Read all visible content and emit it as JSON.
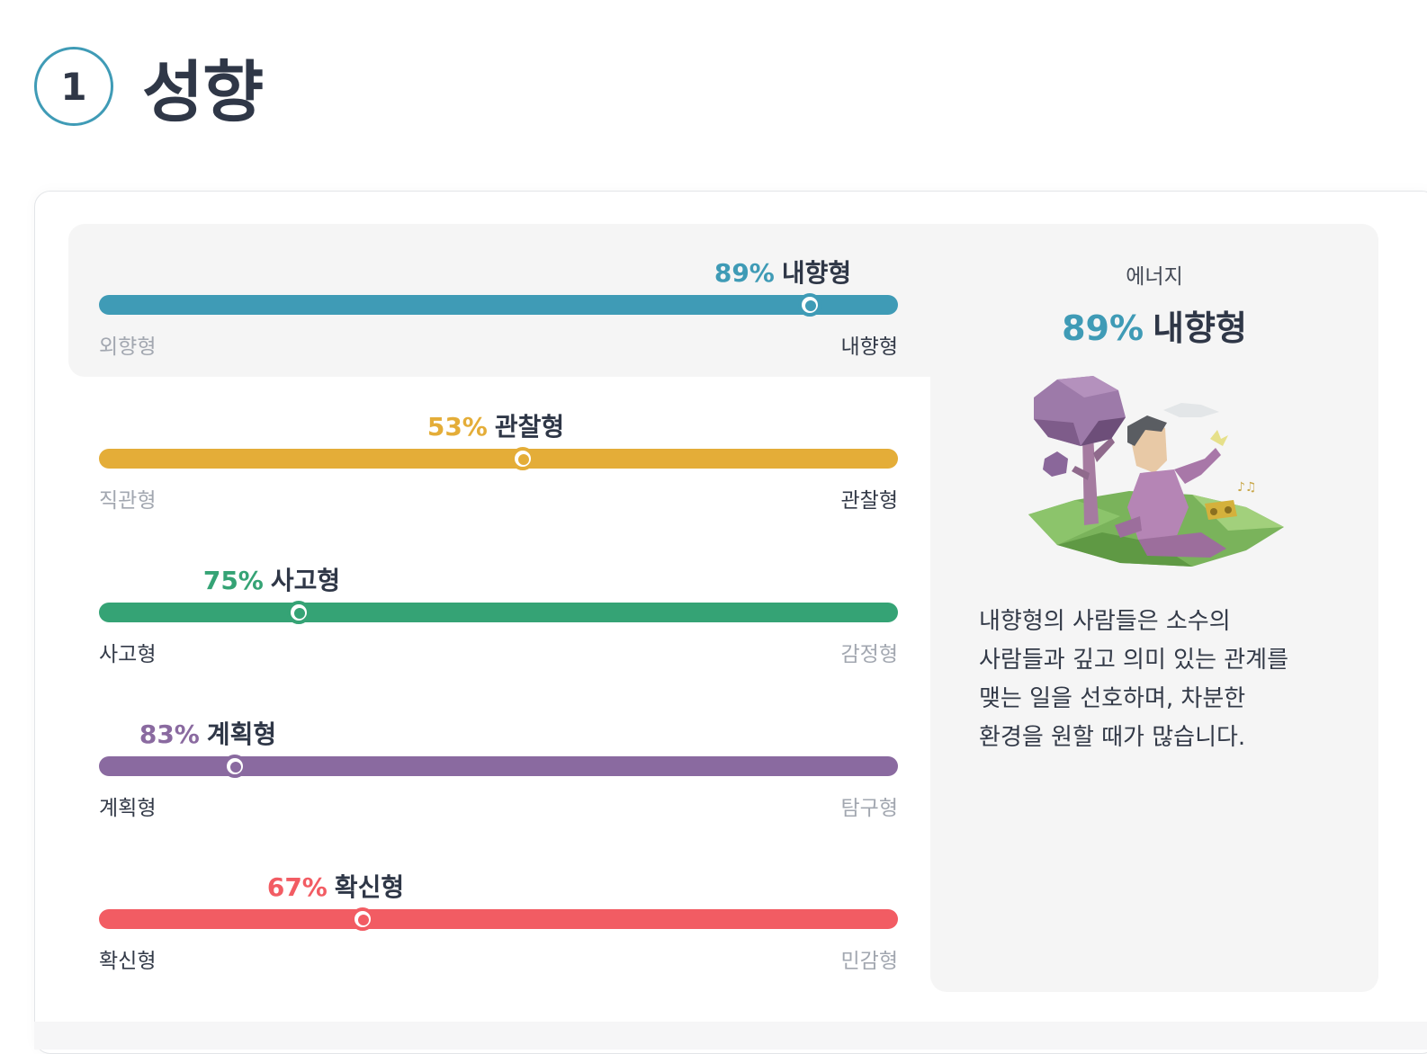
{
  "header": {
    "number": "1",
    "title": "성향"
  },
  "colors": {
    "teal": "#3f9bb6",
    "yellow": "#e4ad38",
    "green": "#35a375",
    "purple": "#8a6aa0",
    "red": "#f25c63"
  },
  "scales": [
    {
      "pct": "89%",
      "type": "내향형",
      "left_label": "외향형",
      "right_label": "내향형",
      "knob_fraction": 0.89,
      "color": "#3f9bb6",
      "active_side": "right"
    },
    {
      "pct": "53%",
      "type": "관찰형",
      "left_label": "직관형",
      "right_label": "관찰형",
      "knob_fraction": 0.53,
      "color": "#e4ad38",
      "active_side": "right"
    },
    {
      "pct": "75%",
      "type": "사고형",
      "left_label": "사고형",
      "right_label": "감정형",
      "knob_fraction": 0.25,
      "color": "#35a375",
      "active_side": "left"
    },
    {
      "pct": "83%",
      "type": "계획형",
      "left_label": "계획형",
      "right_label": "탐구형",
      "knob_fraction": 0.17,
      "color": "#8a6aa0",
      "active_side": "left"
    },
    {
      "pct": "67%",
      "type": "확신형",
      "left_label": "확신형",
      "right_label": "민감형",
      "knob_fraction": 0.33,
      "color": "#f25c63",
      "active_side": "left"
    }
  ],
  "detail": {
    "category": "에너지",
    "pct": "89%",
    "type": "내향형",
    "illustration_icon": "man-relaxing-under-tree-illustration",
    "description_lines": [
      "내향형의 사람들은 소수의",
      "사람들과 깊고 의미 있는 관계를",
      "맺는 일을 선호하며, 차분한",
      "환경을 원할 때가 많습니다."
    ]
  }
}
